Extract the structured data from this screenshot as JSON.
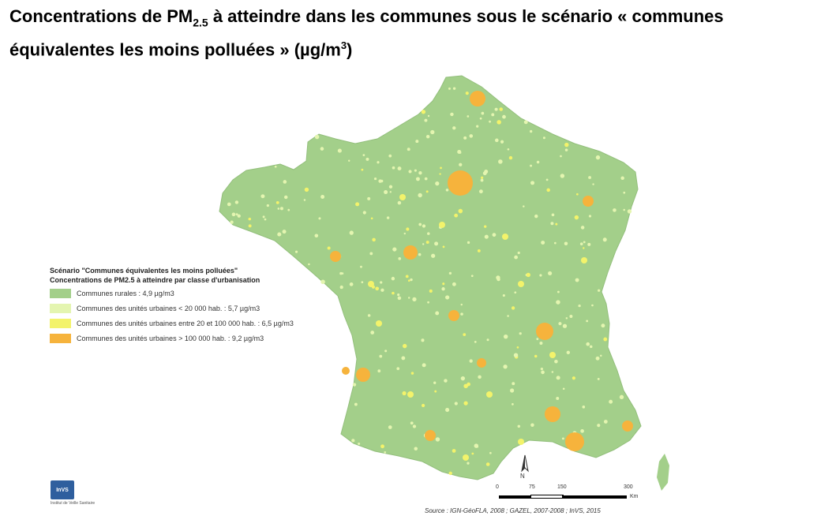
{
  "title": {
    "part1": "Concentrations de PM",
    "sub": "2.5",
    "part2": " à atteindre dans les communes sous le scénario « communes équivalentes les moins polluées » (µg/m",
    "sup": "3",
    "part3": ")"
  },
  "legend": {
    "heading": "Scénario \"Communes équivalentes les moins polluées\"",
    "subheading": "Concentrations de PM2.5 à atteindre par classe d'urbanisation",
    "items": [
      {
        "label": "Communes rurales : 4,9 µg/m3",
        "value": 4.9,
        "color": "#a3cf8a"
      },
      {
        "label": "Communes des unités urbaines < 20 000 hab. : 5,7 µg/m3",
        "value": 5.7,
        "color": "#e4f5b0"
      },
      {
        "label": "Communes des unités urbaines entre 20 et 100 000 hab. : 6,5 µg/m3",
        "value": 6.5,
        "color": "#f3f36b"
      },
      {
        "label": "Communes des unités urbaines > 100 000 hab. : 9,2 µg/m3",
        "value": 9.2,
        "color": "#f6b33c"
      }
    ]
  },
  "scale": {
    "ticks": [
      "0",
      "75",
      "150",
      "300"
    ],
    "unit": "Km"
  },
  "north_label": "N",
  "source": "Source : IGN-GéoFLA, 2008 ; GAZEL, 2007-2008 ; InVS, 2015",
  "logo": {
    "mark": "InVS",
    "caption": "Institut de Veille Sanitaire"
  }
}
